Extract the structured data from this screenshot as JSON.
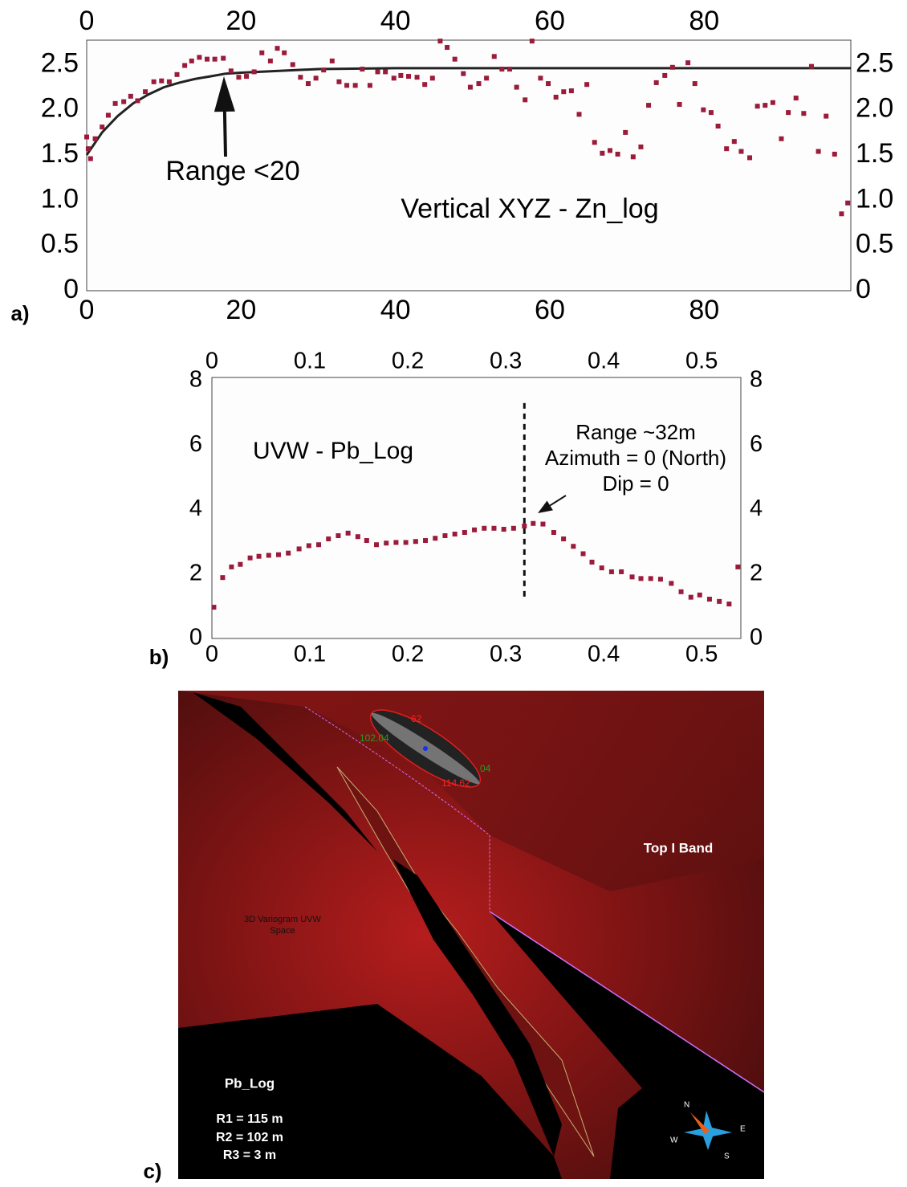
{
  "chart_data": [
    {
      "type": "scatter",
      "panel_label": "a)",
      "title": "Vertical XYZ - Zn_log",
      "annotations": [
        "Range <20"
      ],
      "color": "#9b1b3a",
      "x": [
        0,
        0.2,
        0.5,
        1.1,
        2,
        2.8,
        3.7,
        4.8,
        5.7,
        6.6,
        7.6,
        8.7,
        9.7,
        10.7,
        11.7,
        12.7,
        13.6,
        14.6,
        15.6,
        16.6,
        17.7,
        18.7,
        19.7,
        20.7,
        21.7,
        22.7,
        23.8,
        24.7,
        25.6,
        26.7,
        27.7,
        28.7,
        29.7,
        30.7,
        31.8,
        32.7,
        33.7,
        34.8,
        35.7,
        36.7,
        37.7,
        38.7,
        39.8,
        40.7,
        41.7,
        42.8,
        43.8,
        44.8,
        45.8,
        46.7,
        47.7,
        48.8,
        49.7,
        50.8,
        51.8,
        52.8,
        53.8,
        54.8,
        55.7,
        56.8,
        57.7,
        58.8,
        59.8,
        60.8,
        61.8,
        62.8,
        63.8,
        64.8,
        65.8,
        66.8,
        67.8,
        68.8,
        69.8,
        70.8,
        71.8,
        72.8,
        73.8,
        74.9,
        75.9,
        76.8,
        77.9,
        78.8,
        79.9,
        80.9,
        81.8,
        82.9,
        83.9,
        84.8,
        85.9,
        86.9,
        87.9,
        88.9,
        90,
        90.9,
        91.9,
        92.9,
        93.9,
        94.8,
        95.8,
        96.9,
        97.8,
        98.6
      ],
      "values": [
        1.7,
        1.57,
        1.46,
        1.68,
        1.81,
        1.94,
        2.07,
        2.09,
        2.15,
        2.1,
        2.2,
        2.31,
        2.32,
        2.31,
        2.39,
        2.49,
        2.54,
        2.58,
        2.56,
        2.56,
        2.57,
        2.43,
        2.36,
        2.37,
        2.42,
        2.63,
        2.54,
        2.68,
        2.63,
        2.5,
        2.36,
        2.29,
        2.35,
        2.44,
        2.54,
        2.31,
        2.27,
        2.27,
        2.45,
        2.27,
        2.42,
        2.42,
        2.35,
        2.38,
        2.37,
        2.36,
        2.28,
        2.35,
        2.76,
        2.69,
        2.56,
        2.4,
        2.25,
        2.29,
        2.35,
        2.59,
        2.45,
        2.45,
        2.25,
        2.11,
        2.76,
        2.35,
        2.29,
        2.14,
        2.2,
        2.21,
        1.95,
        2.28,
        1.64,
        1.52,
        1.55,
        1.51,
        1.75,
        1.48,
        1.59,
        2.05,
        2.3,
        2.38,
        2.47,
        2.06,
        2.52,
        2.29,
        2,
        1.97,
        1.82,
        1.57,
        1.65,
        1.54,
        1.47,
        2.04,
        2.05,
        2.08,
        1.68,
        1.97,
        2.13,
        1.96,
        2.48,
        1.54,
        1.93,
        1.51,
        0.85,
        0.97
      ],
      "model": {
        "color": "#222222",
        "x": [
          0,
          2,
          4,
          6,
          8,
          10,
          12,
          14,
          16,
          18,
          20,
          30,
          40,
          60,
          80,
          99
        ],
        "values": [
          1.5,
          1.75,
          1.93,
          2.07,
          2.17,
          2.25,
          2.3,
          2.34,
          2.37,
          2.4,
          2.41,
          2.45,
          2.46,
          2.46,
          2.46,
          2.46
        ]
      },
      "xlim": [
        0,
        99
      ],
      "xticks": [
        0,
        20,
        40,
        60,
        80
      ],
      "ylim": [
        0,
        2.77
      ],
      "yticks": [
        0,
        0.5,
        {
          "value": 1,
          "label": "1.0"
        },
        1.5,
        {
          "value": 2,
          "label": "2.0"
        },
        2.5
      ]
    },
    {
      "type": "scatter",
      "panel_label": "b)",
      "title": "UVW - Pb_Log",
      "annotations": [
        "Range ~32m",
        "Azimuth = 0 (North)",
        "Dip = 0"
      ],
      "color": "#9b1b3a",
      "x": [
        0.002,
        0.011,
        0.02,
        0.029,
        0.039,
        0.048,
        0.058,
        0.068,
        0.078,
        0.089,
        0.099,
        0.109,
        0.119,
        0.129,
        0.139,
        0.149,
        0.158,
        0.168,
        0.178,
        0.188,
        0.198,
        0.208,
        0.218,
        0.228,
        0.238,
        0.248,
        0.258,
        0.268,
        0.278,
        0.288,
        0.298,
        0.308,
        0.319,
        0.328,
        0.338,
        0.349,
        0.359,
        0.369,
        0.379,
        0.388,
        0.398,
        0.408,
        0.418,
        0.429,
        0.438,
        0.448,
        0.458,
        0.469,
        0.479,
        0.489,
        0.498,
        0.508,
        0.518,
        0.528,
        0.537
      ],
      "values": [
        0.97,
        1.89,
        2.22,
        2.3,
        2.5,
        2.55,
        2.58,
        2.6,
        2.65,
        2.78,
        2.88,
        2.91,
        3.09,
        3.19,
        3.27,
        3.16,
        3.04,
        2.91,
        2.96,
        2.98,
        2.98,
        3.01,
        3.04,
        3.11,
        3.19,
        3.24,
        3.29,
        3.37,
        3.42,
        3.42,
        3.39,
        3.42,
        3.49,
        3.57,
        3.55,
        3.29,
        3.09,
        2.86,
        2.63,
        2.37,
        2.19,
        2.07,
        2.07,
        1.91,
        1.86,
        1.86,
        1.84,
        1.71,
        1.45,
        1.28,
        1.35,
        1.22,
        1.15,
        1.07,
        2.22
      ],
      "vline": {
        "x": 0.319,
        "y": [
          1.3,
          7.4
        ]
      },
      "xlim": [
        0,
        0.54
      ],
      "xticks": [
        0,
        0.1,
        0.2,
        0.3,
        0.4,
        0.5
      ],
      "ylim": [
        0,
        8.1
      ],
      "yticks": [
        0,
        2,
        4,
        6,
        8
      ]
    }
  ],
  "panel_c": {
    "panel_label": "c)",
    "surface_label": "Top I Band",
    "label_lines": [
      "3D Variogram  UVW",
      "Space"
    ],
    "legend_title": "Pb_Log",
    "ranges": [
      "R1 = 115 m",
      "R2 = 102 m",
      "R3 = 3 m"
    ],
    "ellipsoid_labels": [
      "62",
      "102.04",
      "04",
      "114.62"
    ],
    "compass": [
      "N",
      "E",
      "W",
      "S"
    ]
  }
}
